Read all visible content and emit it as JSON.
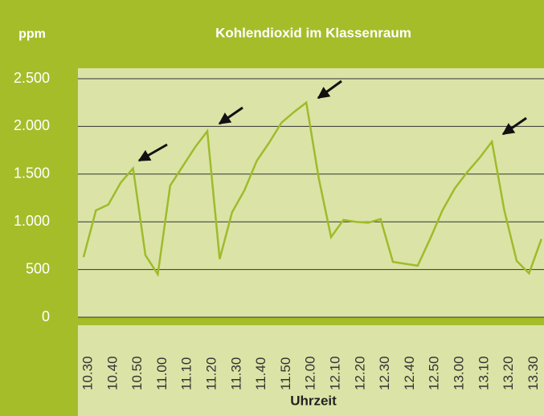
{
  "chart_data": {
    "type": "line",
    "title": "Kohlendioxid im Klassenraum",
    "y_label": "ppm",
    "x_label": "Uhrzeit",
    "categories": [
      "10.30",
      null,
      "10.40",
      null,
      "10.50",
      null,
      "11.00",
      null,
      "11.10",
      null,
      "11.20",
      null,
      "11.30",
      null,
      "11.40",
      null,
      "11.50",
      null,
      "12.00",
      null,
      "12.10",
      null,
      "12.20",
      null,
      "12.30",
      null,
      "12.40",
      null,
      "12.50",
      null,
      "13.00",
      null,
      "13.10",
      null,
      "13.20",
      null,
      "13.30",
      null
    ],
    "values": [
      630,
      1120,
      1180,
      1410,
      1560,
      650,
      450,
      1380,
      1580,
      1780,
      1950,
      610,
      1100,
      1330,
      1640,
      1830,
      2040,
      2150,
      2250,
      1460,
      840,
      1020,
      1000,
      990,
      1030,
      580,
      560,
      540,
      820,
      1120,
      1350,
      1520,
      1670,
      1840,
      1120,
      590,
      460,
      820
    ],
    "color": "#9fbb2b",
    "ylim": [
      0,
      2500
    ],
    "yticks": [
      0,
      500,
      {
        "value": 1000,
        "label": "1.000"
      },
      {
        "value": 1500,
        "label": "1.500"
      },
      {
        "value": 2000,
        "label": "2.000"
      },
      {
        "value": 2500,
        "label": "2.500"
      }
    ],
    "grid": true
  }
}
